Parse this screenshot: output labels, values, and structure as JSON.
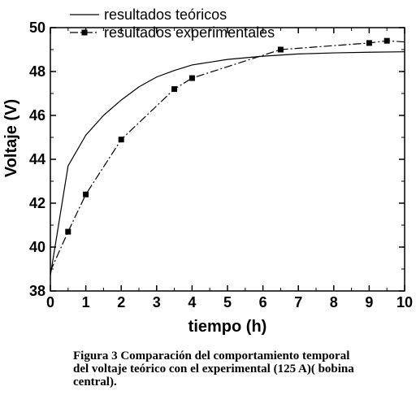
{
  "chart_data": {
    "type": "line",
    "xlabel": "tiempo (h)",
    "ylabel": "Voltaje (V)",
    "xlim": [
      0,
      10
    ],
    "ylim": [
      38,
      50
    ],
    "xticks": [
      0,
      1,
      2,
      3,
      4,
      5,
      6,
      7,
      8,
      9,
      10
    ],
    "yticks": [
      38,
      40,
      42,
      44,
      46,
      48,
      50
    ],
    "grid": false,
    "legend_position": "top-left",
    "series": [
      {
        "name": "resultados teóricos",
        "style": "solid",
        "x": [
          0,
          0.5,
          1,
          1.5,
          2,
          2.5,
          3,
          3.5,
          4,
          5,
          6,
          7,
          8,
          9,
          10
        ],
        "y": [
          38.7,
          43.7,
          45.1,
          46.0,
          46.7,
          47.3,
          47.75,
          48.05,
          48.3,
          48.55,
          48.7,
          48.8,
          48.85,
          48.88,
          48.9
        ]
      },
      {
        "name": "resultados experimentales",
        "style": "dashdot",
        "marker": "square",
        "x": [
          0,
          0.5,
          1,
          2,
          3.5,
          4,
          6.5,
          9,
          9.5,
          10
        ],
        "y": [
          38.9,
          40.7,
          42.4,
          44.9,
          47.2,
          47.7,
          49.0,
          49.3,
          49.4,
          49.35
        ],
        "marked": [
          false,
          true,
          true,
          true,
          true,
          true,
          true,
          true,
          true,
          false
        ]
      }
    ]
  },
  "caption": {
    "line1": "Figura 3 Comparación del comportamiento temporal",
    "line2": "del voltaje teórico con el experimental (125 A)( bobina",
    "line3": "central)."
  },
  "colors": {
    "ink": "#000000",
    "background": "#ffffff"
  }
}
